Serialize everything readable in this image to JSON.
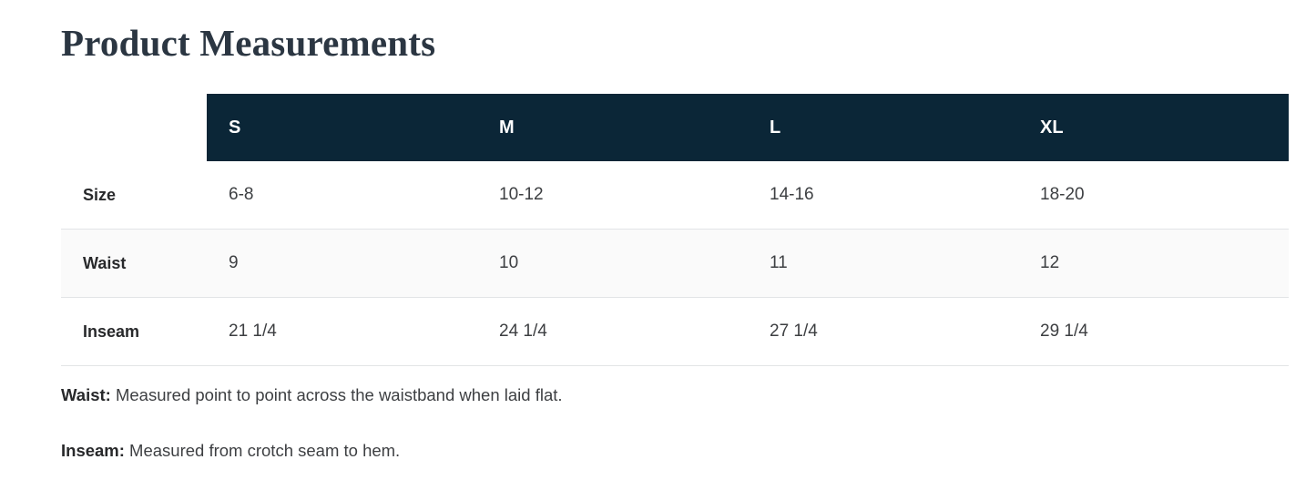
{
  "section": {
    "title": "Product Measurements"
  },
  "table": {
    "columns": [
      "S",
      "M",
      "L",
      "XL"
    ],
    "rows": [
      {
        "label": "Size",
        "values": [
          "6-8",
          "10-12",
          "14-16",
          "18-20"
        ]
      },
      {
        "label": "Waist",
        "values": [
          "9",
          "10",
          "11",
          "12"
        ]
      },
      {
        "label": "Inseam",
        "values": [
          "21 1/4",
          "24 1/4",
          "27 1/4",
          "29 1/4"
        ]
      }
    ]
  },
  "notes": [
    {
      "label": "Waist:",
      "text": " Measured point to point across the waistband when laid flat."
    },
    {
      "label": "Inseam:",
      "text": " Measured from crotch seam to hem."
    }
  ],
  "colors": {
    "header_bg": "#0b2637",
    "header_text": "#ffffff",
    "stripe_row_bg": "#fafafa",
    "border": "#e2e4e6",
    "title_text": "#2b3642",
    "body_text": "#3d3f42"
  }
}
